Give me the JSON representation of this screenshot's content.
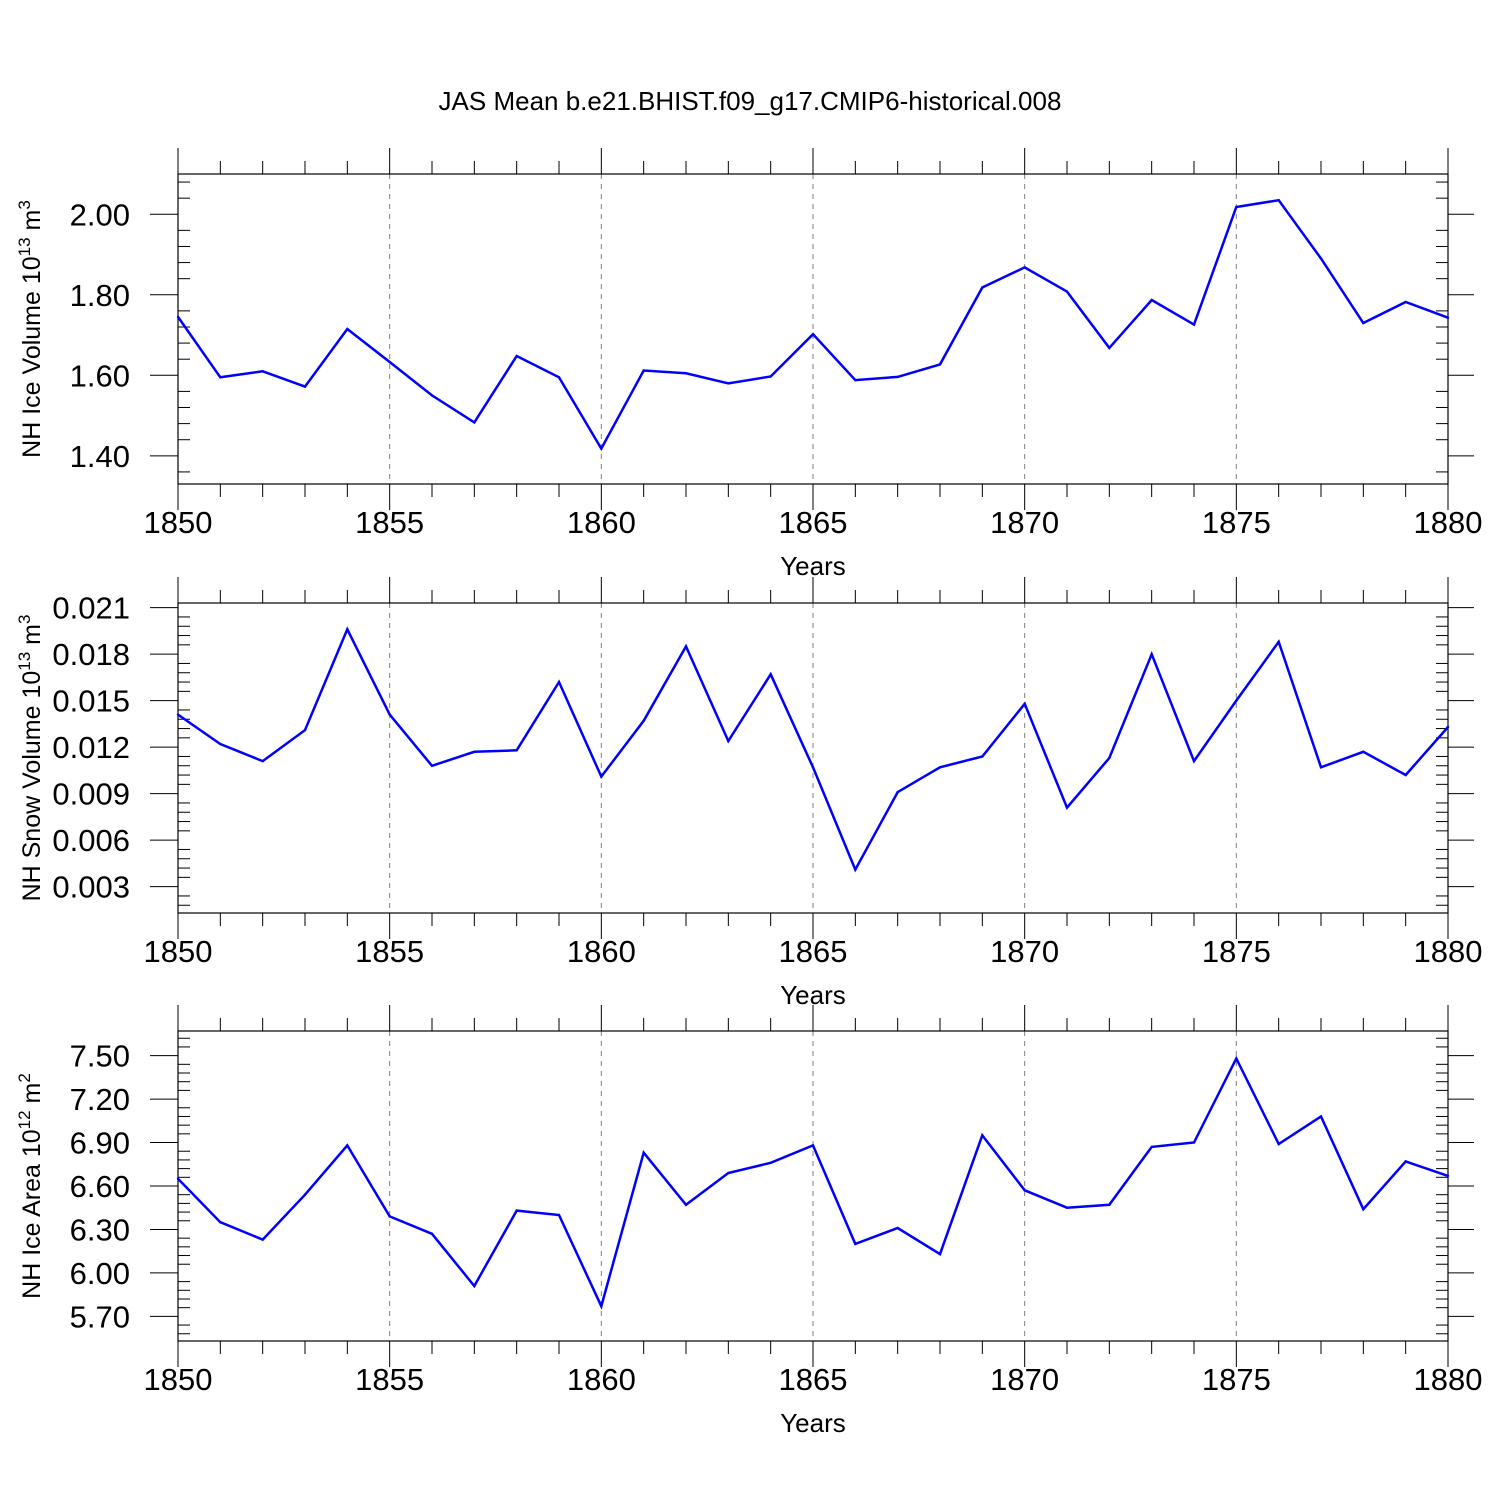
{
  "figure_title": "JAS Mean b.e21.BHIST.f09_g17.CMIP6-historical.008",
  "colors": {
    "line": "#0000ff",
    "axis": "#000000",
    "grid": "#808080"
  },
  "chart_data": [
    {
      "type": "line",
      "ylabel_main": "NH Ice Volume 10",
      "ylabel_sup": "13",
      "ylabel_unit": " m",
      "ylabel_unit_sup": "3",
      "xlabel": "Years",
      "xlim": [
        1850,
        1880
      ],
      "ylim": [
        1.33,
        2.1
      ],
      "yticks": [
        1.4,
        1.6,
        1.8,
        2.0
      ],
      "ytick_labels": [
        "1.40",
        "1.60",
        "1.80",
        "2.00"
      ],
      "xticks": [
        1850,
        1855,
        1860,
        1865,
        1870,
        1875,
        1880
      ],
      "xtick_labels": [
        "1850",
        "1855",
        "1860",
        "1865",
        "1870",
        "1875",
        "1880"
      ],
      "grid_x": [
        1855,
        1860,
        1865,
        1870,
        1875
      ],
      "x": [
        1850,
        1851,
        1852,
        1853,
        1854,
        1855,
        1856,
        1857,
        1858,
        1859,
        1860,
        1861,
        1862,
        1863,
        1864,
        1865,
        1866,
        1867,
        1868,
        1869,
        1870,
        1871,
        1872,
        1873,
        1874,
        1875,
        1876,
        1877,
        1878,
        1879,
        1880
      ],
      "values": [
        1.745,
        1.595,
        1.61,
        1.572,
        1.715,
        1.633,
        1.55,
        1.483,
        1.648,
        1.595,
        1.418,
        1.612,
        1.605,
        1.58,
        1.597,
        1.702,
        1.588,
        1.596,
        1.627,
        1.818,
        1.868,
        1.808,
        1.668,
        1.787,
        1.726,
        2.018,
        2.035,
        1.89,
        1.73,
        1.782,
        1.743
      ]
    },
    {
      "type": "line",
      "ylabel_main": "NH Snow Volume 10",
      "ylabel_sup": "13",
      "ylabel_unit": " m",
      "ylabel_unit_sup": "3",
      "xlabel": "Years",
      "xlim": [
        1850,
        1880
      ],
      "ylim": [
        0.0013,
        0.0213
      ],
      "yticks": [
        0.003,
        0.006,
        0.009,
        0.012,
        0.015,
        0.018,
        0.021
      ],
      "ytick_labels": [
        "0.003",
        "0.006",
        "0.009",
        "0.012",
        "0.015",
        "0.018",
        "0.021"
      ],
      "xticks": [
        1850,
        1855,
        1860,
        1865,
        1870,
        1875,
        1880
      ],
      "xtick_labels": [
        "1850",
        "1855",
        "1860",
        "1865",
        "1870",
        "1875",
        "1880"
      ],
      "grid_x": [
        1855,
        1860,
        1865,
        1870,
        1875
      ],
      "x": [
        1850,
        1851,
        1852,
        1853,
        1854,
        1855,
        1856,
        1857,
        1858,
        1859,
        1860,
        1861,
        1862,
        1863,
        1864,
        1865,
        1866,
        1867,
        1868,
        1869,
        1870,
        1871,
        1872,
        1873,
        1874,
        1875,
        1876,
        1877,
        1878,
        1879,
        1880
      ],
      "values": [
        0.0141,
        0.0122,
        0.0111,
        0.0131,
        0.0196,
        0.0141,
        0.0108,
        0.0117,
        0.0118,
        0.0162,
        0.0101,
        0.0137,
        0.0185,
        0.0124,
        0.0167,
        0.0107,
        0.0041,
        0.0091,
        0.0107,
        0.0114,
        0.0148,
        0.0081,
        0.0113,
        0.018,
        0.0111,
        0.015,
        0.0188,
        0.0107,
        0.0117,
        0.0102,
        0.0133
      ]
    },
    {
      "type": "line",
      "ylabel_main": "NH Ice Area 10",
      "ylabel_sup": "12",
      "ylabel_unit": " m",
      "ylabel_unit_sup": "2",
      "xlabel": "Years",
      "xlim": [
        1850,
        1880
      ],
      "ylim": [
        5.53,
        7.67
      ],
      "yticks": [
        5.7,
        6.0,
        6.3,
        6.6,
        6.9,
        7.2,
        7.5
      ],
      "ytick_labels": [
        "5.70",
        "6.00",
        "6.30",
        "6.60",
        "6.90",
        "7.20",
        "7.50"
      ],
      "xticks": [
        1850,
        1855,
        1860,
        1865,
        1870,
        1875,
        1880
      ],
      "xtick_labels": [
        "1850",
        "1855",
        "1860",
        "1865",
        "1870",
        "1875",
        "1880"
      ],
      "grid_x": [
        1855,
        1860,
        1865,
        1870,
        1875
      ],
      "x": [
        1850,
        1851,
        1852,
        1853,
        1854,
        1855,
        1856,
        1857,
        1858,
        1859,
        1860,
        1861,
        1862,
        1863,
        1864,
        1865,
        1866,
        1867,
        1868,
        1869,
        1870,
        1871,
        1872,
        1873,
        1874,
        1875,
        1876,
        1877,
        1878,
        1879,
        1880
      ],
      "values": [
        6.65,
        6.35,
        6.23,
        6.54,
        6.88,
        6.39,
        6.27,
        5.91,
        6.43,
        6.4,
        5.77,
        6.83,
        6.47,
        6.69,
        6.76,
        6.88,
        6.2,
        6.31,
        6.13,
        6.95,
        6.57,
        6.45,
        6.47,
        6.87,
        6.9,
        7.48,
        6.89,
        7.08,
        6.44,
        6.77,
        6.67
      ]
    }
  ]
}
